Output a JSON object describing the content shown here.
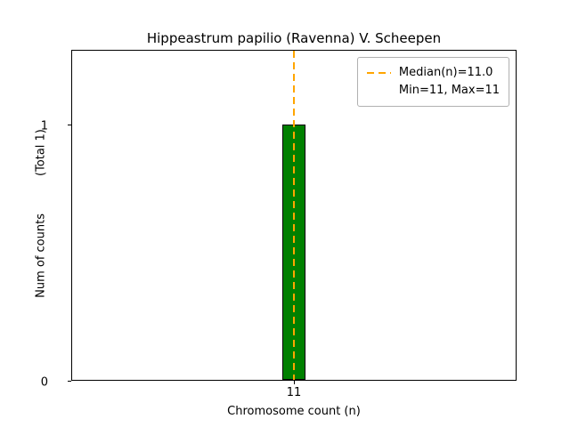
{
  "chart_data": {
    "type": "bar",
    "title": "Hippeastrum papilio (Ravenna) V. Scheepen",
    "xlabel": "Chromosome count (n)",
    "ylabel": "Num of counts",
    "ylabel_note": "(Total 1)",
    "categories": [
      "11"
    ],
    "values": [
      1
    ],
    "ylim": [
      0,
      1.29
    ],
    "yticks": [
      {
        "value": 0,
        "label": "0"
      },
      {
        "value": 1,
        "label": "1"
      }
    ],
    "xticks": [
      {
        "label": "11",
        "position": 0.5
      }
    ],
    "median": 11.0,
    "min": 11,
    "max": 11,
    "legend": [
      "Median(n)=11.0",
      "Min=11, Max=11"
    ],
    "legend_position": "upper right",
    "grid": false,
    "colors": {
      "bar_fill": "#008000",
      "bar_edge": "#000000",
      "median_line": "#ffa500"
    }
  }
}
